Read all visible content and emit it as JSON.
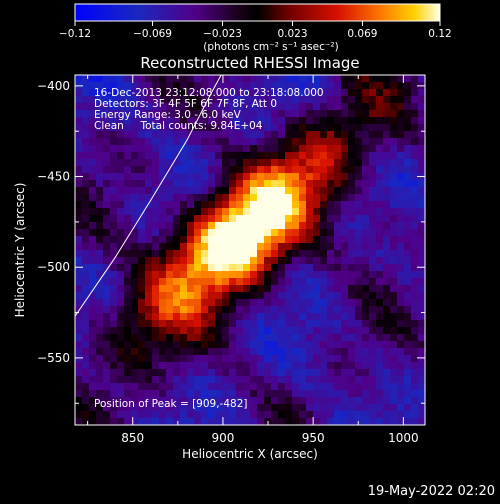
{
  "colorbar": {
    "ticks": [
      {
        "value": -0.12,
        "label": "−0.12"
      },
      {
        "value": -0.069,
        "label": "−0.069"
      },
      {
        "value": -0.023,
        "label": "−0.023"
      },
      {
        "value": 0.023,
        "label": "0.023"
      },
      {
        "value": 0.069,
        "label": "0.069"
      },
      {
        "value": 0.12,
        "label": "0.12"
      }
    ],
    "unit_label": "(photons cm⁻² s⁻¹ asec⁻²)"
  },
  "chart_data": {
    "type": "heatmap",
    "title": "Reconstructed RHESSI Image",
    "xlabel": "Heliocentric X (arcsec)",
    "ylabel": "Heliocentric Y (arcsec)",
    "xlim": [
      818,
      1012
    ],
    "ylim": [
      -587,
      -394
    ],
    "x_ticks": [
      850,
      900,
      950,
      1000
    ],
    "y_ticks": [
      -400,
      -450,
      -500,
      -550
    ],
    "x_tick_labels": [
      "850",
      "900",
      "950",
      "1000"
    ],
    "y_tick_labels": [
      "−400",
      "−450",
      "−500",
      "−550"
    ],
    "value_range": [
      -0.12,
      0.12
    ],
    "peak": {
      "x": 909,
      "y": -482
    },
    "source_axis": {
      "x1": 909,
      "y1": -482,
      "x2": 850,
      "y2": -535
    },
    "limb_curve": [
      [
        818,
        -527
      ],
      [
        840,
        -495
      ],
      [
        860,
        -463
      ],
      [
        880,
        -430
      ],
      [
        893,
        -405
      ],
      [
        899,
        -394
      ]
    ],
    "annotations": [
      "16-Dec-2013 23:12:08.000 to 23:18:08.000",
      "Detectors: 3F 4F 5F 6F 7F 8F, Att 0",
      "Energy Range: 3.0 - 6.0 keV",
      "Clean     Total counts: 9.84E+04"
    ],
    "peak_label": "Position of Peak = [909,-482]"
  },
  "timestamp": "19-May-2022 02:20"
}
